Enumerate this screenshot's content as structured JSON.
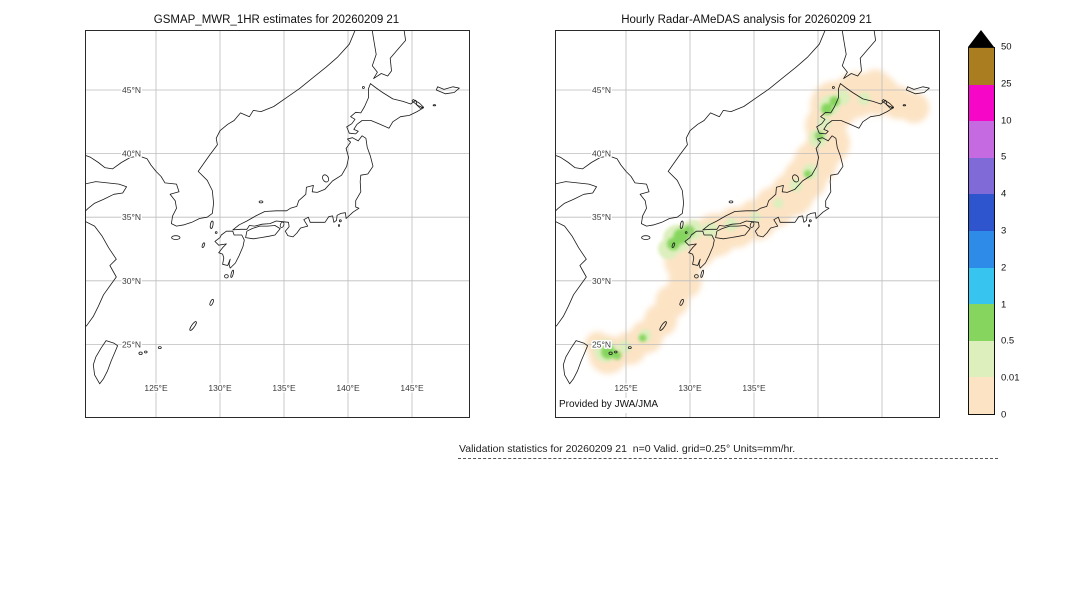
{
  "panels": {
    "left": {
      "title": "GSMAP_MWR_1HR estimates for 20260209 21"
    },
    "right": {
      "title": "Hourly Radar-AMeDAS analysis for 20260209 21",
      "credit": "Provided by JWA/JMA"
    }
  },
  "axes": {
    "lat_labels": [
      "45°N",
      "40°N",
      "35°N",
      "30°N",
      "25°N"
    ],
    "lat_values": [
      45,
      40,
      35,
      30,
      25
    ],
    "grid_lon_values": [
      125,
      130,
      135,
      140,
      145
    ],
    "left_lon_labels": [
      "125°E",
      "130°E",
      "135°E",
      "140°E",
      "145°E"
    ],
    "left_lon_values": [
      125,
      130,
      135,
      140,
      145
    ],
    "right_lon_labels": [
      "125°E",
      "130°E",
      "135°E"
    ],
    "right_lon_values": [
      125,
      130,
      135
    ]
  },
  "colorbar": {
    "labels": [
      "50",
      "25",
      "10",
      "5",
      "4",
      "3",
      "2",
      "1",
      "0.5",
      "0.01",
      "0"
    ],
    "segment_colors": [
      "#aa7d20",
      "#f607c8",
      "#c56ae0",
      "#7f6ad8",
      "#2e55cd",
      "#2e8ce8",
      "#37c5f0",
      "#86d55e",
      "#dcefbd",
      "#fce3c4"
    ],
    "arrow_color": "#000000"
  },
  "map_colors": {
    "trace": "#fce3c4",
    "light": "#dcefbd",
    "moderate": "#86d55e"
  },
  "caption": "Validation statistics for 20260209 21  n=0 Valid. grid=0.25° Units=mm/hr."
}
